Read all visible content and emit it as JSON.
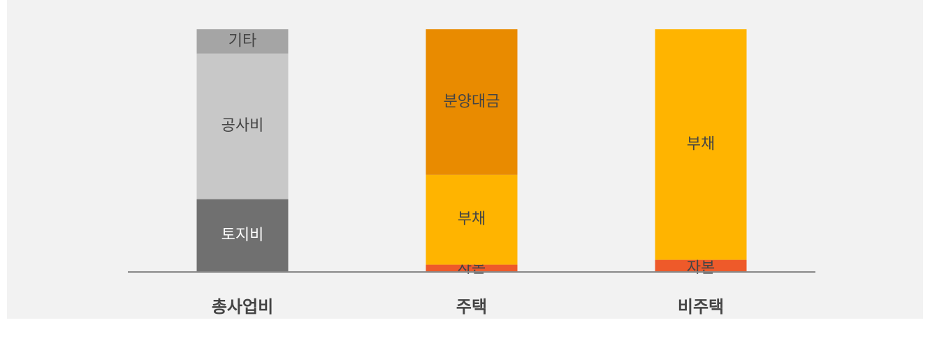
{
  "chart_data": {
    "type": "stacked_bar",
    "categories": [
      "총사업비",
      "주택",
      "비주택"
    ],
    "stacks": [
      [
        {
          "name": "토지비",
          "color": "#707070",
          "value": 30
        },
        {
          "name": "공사비",
          "color": "#c8c8c8",
          "value": 60
        },
        {
          "name": "기타",
          "color": "#a5a5a5",
          "value": 10
        }
      ],
      [
        {
          "name": "자본",
          "color": "#ee5a2a",
          "value": 3
        },
        {
          "name": "부채",
          "color": "#ffb400",
          "value": 37
        },
        {
          "name": "분양대금",
          "color": "#e98b00",
          "value": 60
        }
      ],
      [
        {
          "name": "자본",
          "color": "#ee5a2a",
          "value": 5
        },
        {
          "name": "부채",
          "color": "#ffb400",
          "value": 95
        }
      ]
    ],
    "ylim": [
      0,
      100
    ]
  }
}
